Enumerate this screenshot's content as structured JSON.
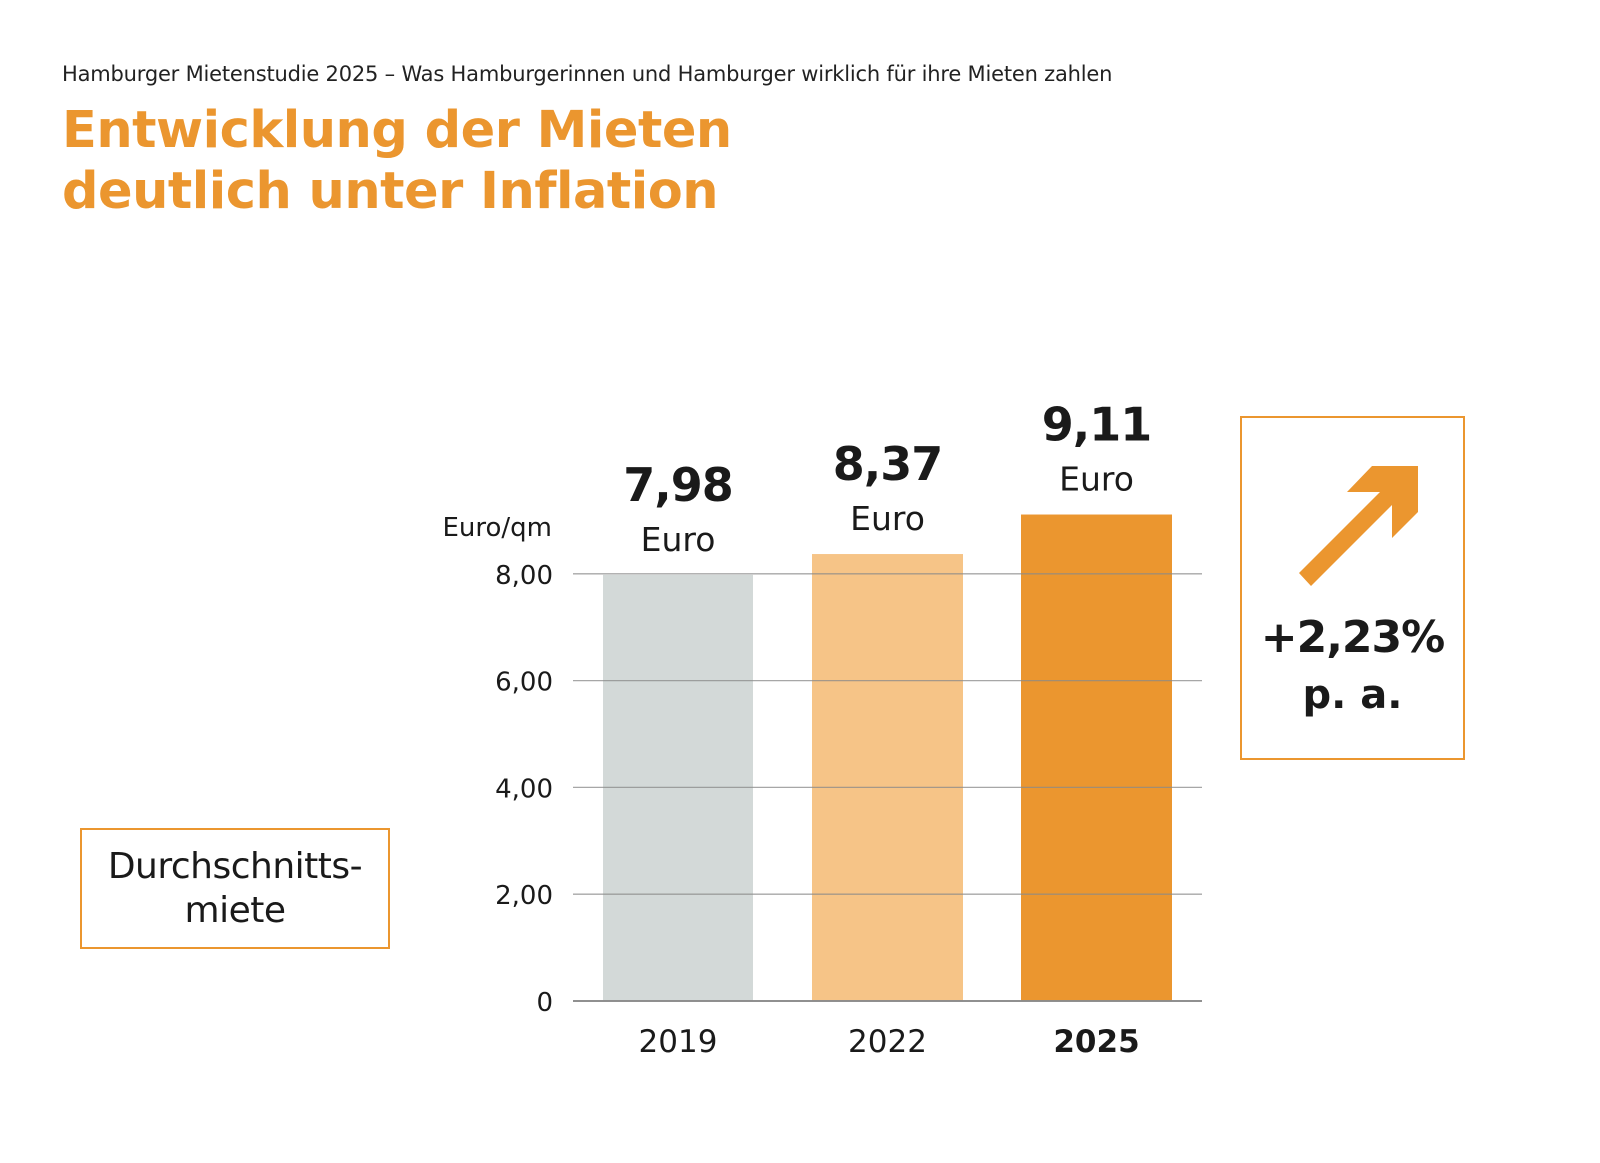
{
  "header": {
    "kicker": "Hamburger Mietenstudie 2025 – Was Hamburgerinnen und Hamburger wirklich für ihre Mieten zahlen",
    "title_lines": [
      "Entwicklung der Mieten",
      "deutlich unter Inflation"
    ]
  },
  "colors": {
    "accent": "#eb962f",
    "bar_2019": "#d3d9d8",
    "bar_2022": "#f6c487",
    "bar_2025": "#eb962f",
    "gridline": "#8a8a8a",
    "text": "#1a1a1a"
  },
  "side_label": {
    "lines": [
      "Durchschnitts-",
      "miete"
    ]
  },
  "growth_box": {
    "icon": "arrow-up-right-icon",
    "value": "+2,23%",
    "unit": "p. a."
  },
  "chart_data": {
    "type": "bar",
    "title": "Entwicklung der Mieten deutlich unter Inflation",
    "categories": [
      "2019",
      "2022",
      "2025"
    ],
    "values": [
      7.98,
      8.37,
      9.11
    ],
    "value_labels": [
      "7,98",
      "8,37",
      "9,11"
    ],
    "value_unit_label": "Euro",
    "bold_category": "2025",
    "xlabel": "",
    "ylabel": "Euro/qm",
    "ylim": [
      0,
      8
    ],
    "yticks": [
      0,
      2,
      4,
      6,
      8
    ],
    "ytick_labels": [
      "0",
      "2,00",
      "4,00",
      "6,00",
      "8,00"
    ],
    "grid": true,
    "legend": "none",
    "series_name": "Durchschnittsmiete",
    "annotation": "+2,23% p. a."
  }
}
